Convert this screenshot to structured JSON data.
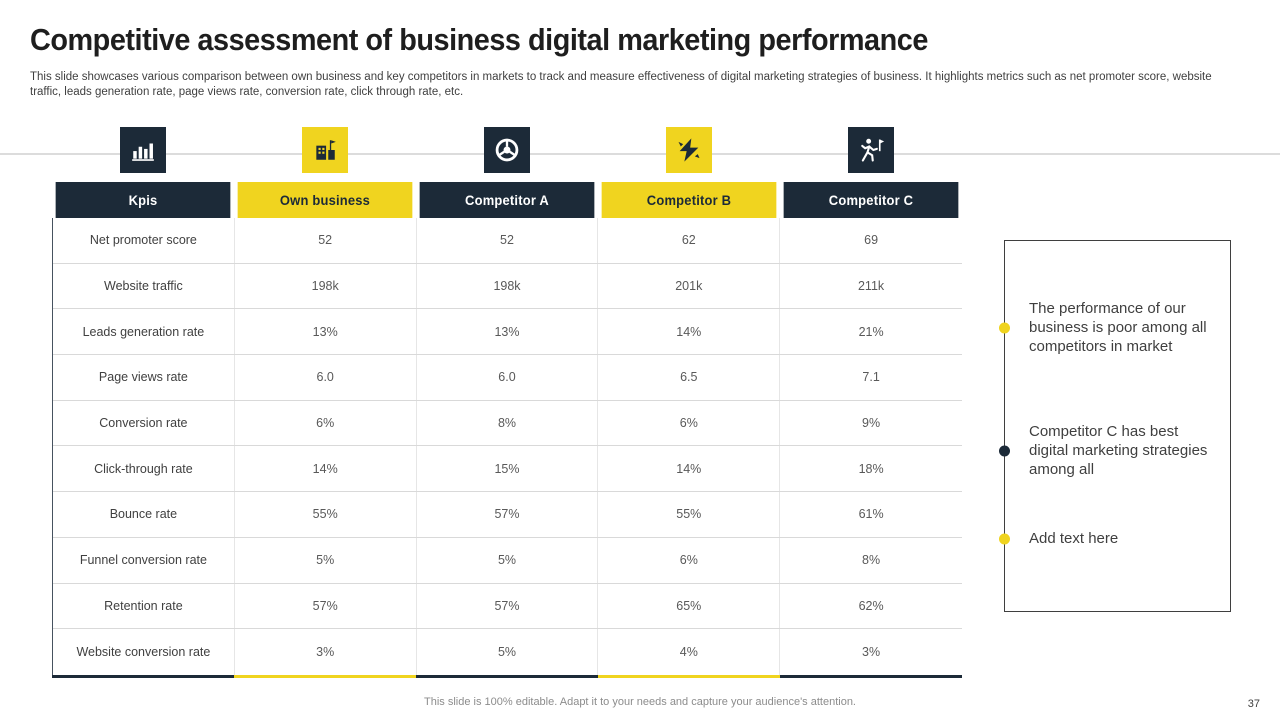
{
  "slide": {
    "title": "Competitive assessment of business digital marketing performance",
    "subtitle": "This slide showcases various comparison between own business and key competitors in markets to track and measure effectiveness of digital marketing strategies of business. It highlights metrics such as net promoter score, website traffic, leads generation rate, page views rate, conversion rate, click through rate, etc.",
    "footer": "This slide is 100% editable.  Adapt it to your needs and capture your audience's attention.",
    "page_number": "37"
  },
  "colors": {
    "navy": "#1c2a38",
    "yellow": "#f0d41f",
    "text_gray": "#3f3f3f"
  },
  "icons": [
    {
      "name": "bar-chart-icon",
      "bg": "navy"
    },
    {
      "name": "ranking-building-icon",
      "bg": "yellow"
    },
    {
      "name": "target-wheel-icon",
      "bg": "navy"
    },
    {
      "name": "collision-bolt-icon",
      "bg": "yellow"
    },
    {
      "name": "runner-flag-icon",
      "bg": "navy"
    }
  ],
  "table": {
    "columns": [
      {
        "label": "Kpis",
        "color": "navy"
      },
      {
        "label": "Own business",
        "color": "yellow"
      },
      {
        "label": "Competitor A",
        "color": "navy"
      },
      {
        "label": "Competitor B",
        "color": "yellow"
      },
      {
        "label": "Competitor C",
        "color": "navy"
      }
    ],
    "rows": [
      {
        "kpi": "Net promoter score",
        "values": [
          "52",
          "52",
          "62",
          "69"
        ]
      },
      {
        "kpi": "Website traffic",
        "values": [
          "198k",
          "198k",
          "201k",
          "211k"
        ]
      },
      {
        "kpi": "Leads generation rate",
        "values": [
          "13%",
          "13%",
          "14%",
          "21%"
        ]
      },
      {
        "kpi": "Page views rate",
        "values": [
          "6.0",
          "6.0",
          "6.5",
          "7.1"
        ]
      },
      {
        "kpi": "Conversion rate",
        "values": [
          "6%",
          "8%",
          "6%",
          "9%"
        ]
      },
      {
        "kpi": "Click-through rate",
        "values": [
          "14%",
          "15%",
          "14%",
          "18%"
        ]
      },
      {
        "kpi": "Bounce rate",
        "values": [
          "55%",
          "57%",
          "55%",
          "61%"
        ]
      },
      {
        "kpi": "Funnel conversion rate",
        "values": [
          "5%",
          "5%",
          "6%",
          "8%"
        ]
      },
      {
        "kpi": "Retention rate",
        "values": [
          "57%",
          "57%",
          "65%",
          "62%"
        ]
      },
      {
        "kpi": "Website conversion rate",
        "values": [
          "3%",
          "5%",
          "4%",
          "3%"
        ]
      }
    ]
  },
  "notes": [
    {
      "bullet_color": "yellow",
      "text": "The performance of our business is poor among all competitors in market"
    },
    {
      "bullet_color": "navy",
      "text": "Competitor C has best digital marketing strategies among all"
    },
    {
      "bullet_color": "yellow",
      "text": "Add text here"
    }
  ]
}
